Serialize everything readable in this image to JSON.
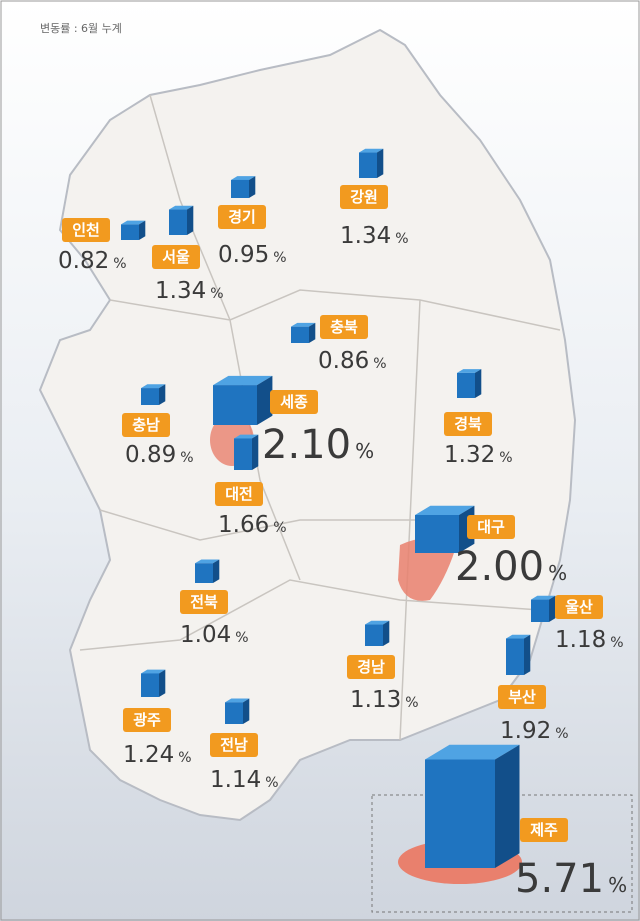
{
  "note": "변동률 : 6월 누계",
  "unit": "%",
  "regions": [
    {
      "name": "인천",
      "value": "0.82"
    },
    {
      "name": "서울",
      "value": "1.34"
    },
    {
      "name": "경기",
      "value": "0.95"
    },
    {
      "name": "강원",
      "value": "1.34"
    },
    {
      "name": "충북",
      "value": "0.86"
    },
    {
      "name": "충남",
      "value": "0.89"
    },
    {
      "name": "세종",
      "value": "2.10"
    },
    {
      "name": "대전",
      "value": "1.66"
    },
    {
      "name": "경북",
      "value": "1.32"
    },
    {
      "name": "대구",
      "value": "2.00"
    },
    {
      "name": "전북",
      "value": "1.04"
    },
    {
      "name": "울산",
      "value": "1.18"
    },
    {
      "name": "경남",
      "value": "1.13"
    },
    {
      "name": "부산",
      "value": "1.92"
    },
    {
      "name": "광주",
      "value": "1.24"
    },
    {
      "name": "전남",
      "value": "1.14"
    },
    {
      "name": "제주",
      "value": "5.71"
    }
  ]
}
